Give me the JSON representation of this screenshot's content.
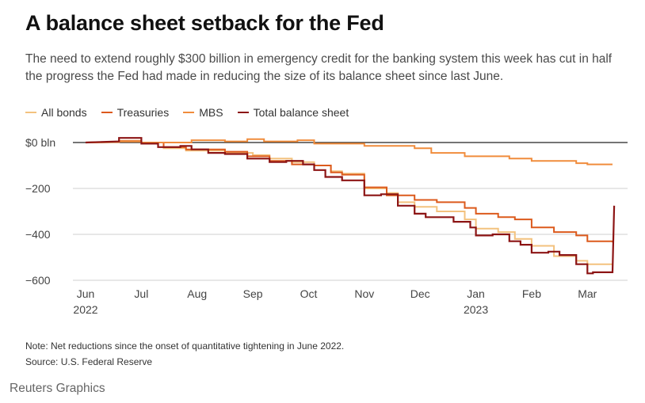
{
  "title": "A balance sheet setback for the Fed",
  "subtitle": "The need to extend roughly $300 billion in emergency credit for the banking system this week has cut in half the progress the Fed had made in reducing the size of its balance sheet since last June.",
  "note": "Note: Net reductions since the onset of quantitative tightening in June 2022.",
  "source": "Source: U.S. Federal Reserve",
  "brand": "Reuters Graphics",
  "colors": {
    "all_bonds": "#f3c27e",
    "treasuries": "#dc5a1c",
    "mbs": "#f08c3c",
    "total": "#8c1414"
  },
  "chart_data": {
    "type": "line",
    "ylim": [
      -600,
      0
    ],
    "yticks": [
      {
        "value": 0,
        "label": "$0 bln"
      },
      {
        "value": -200,
        "label": "−200"
      },
      {
        "value": -400,
        "label": "−400"
      },
      {
        "value": -600,
        "label": "−600"
      }
    ],
    "xticks": [
      {
        "value": 0,
        "label": "Jun",
        "sublabel": "2022"
      },
      {
        "value": 1,
        "label": "Jul",
        "sublabel": ""
      },
      {
        "value": 2,
        "label": "Aug",
        "sublabel": ""
      },
      {
        "value": 3,
        "label": "Sep",
        "sublabel": ""
      },
      {
        "value": 4,
        "label": "Oct",
        "sublabel": ""
      },
      {
        "value": 5,
        "label": "Nov",
        "sublabel": ""
      },
      {
        "value": 6,
        "label": "Dec",
        "sublabel": ""
      },
      {
        "value": 7,
        "label": "Jan",
        "sublabel": "2023"
      },
      {
        "value": 8,
        "label": "Feb",
        "sublabel": ""
      },
      {
        "value": 9,
        "label": "Mar",
        "sublabel": ""
      }
    ],
    "xlim": [
      0,
      9.55
    ],
    "series": [
      {
        "name": "All bonds",
        "color_key": "all_bonds",
        "points": [
          [
            0,
            0
          ],
          [
            0.6,
            2
          ],
          [
            0.6,
            8
          ],
          [
            1.0,
            8
          ],
          [
            1.0,
            0
          ],
          [
            1.4,
            0
          ],
          [
            1.4,
            -25
          ],
          [
            1.8,
            -25
          ],
          [
            1.8,
            -35
          ],
          [
            2.5,
            -35
          ],
          [
            2.5,
            -45
          ],
          [
            3.0,
            -45
          ],
          [
            3.0,
            -55
          ],
          [
            3.3,
            -55
          ],
          [
            3.3,
            -70
          ],
          [
            3.7,
            -70
          ],
          [
            3.7,
            -85
          ],
          [
            4.1,
            -85
          ],
          [
            4.1,
            -100
          ],
          [
            4.4,
            -100
          ],
          [
            4.4,
            -125
          ],
          [
            4.6,
            -125
          ],
          [
            4.6,
            -135
          ],
          [
            5.0,
            -135
          ],
          [
            5.0,
            -200
          ],
          [
            5.4,
            -200
          ],
          [
            5.4,
            -220
          ],
          [
            5.6,
            -220
          ],
          [
            5.6,
            -260
          ],
          [
            5.9,
            -260
          ],
          [
            5.9,
            -280
          ],
          [
            6.3,
            -280
          ],
          [
            6.3,
            -300
          ],
          [
            6.8,
            -300
          ],
          [
            6.8,
            -335
          ],
          [
            7.0,
            -335
          ],
          [
            7.0,
            -375
          ],
          [
            7.4,
            -375
          ],
          [
            7.4,
            -390
          ],
          [
            7.7,
            -390
          ],
          [
            7.7,
            -420
          ],
          [
            8.0,
            -420
          ],
          [
            8.0,
            -450
          ],
          [
            8.4,
            -450
          ],
          [
            8.4,
            -495
          ],
          [
            8.8,
            -495
          ],
          [
            8.8,
            -515
          ],
          [
            9.0,
            -515
          ],
          [
            9.0,
            -530
          ],
          [
            9.45,
            -530
          ]
        ]
      },
      {
        "name": "Treasuries",
        "color_key": "treasuries",
        "points": [
          [
            0,
            0
          ],
          [
            0.6,
            3
          ],
          [
            0.6,
            6
          ],
          [
            1.0,
            6
          ],
          [
            1.0,
            0
          ],
          [
            1.4,
            0
          ],
          [
            1.4,
            -20
          ],
          [
            1.8,
            -20
          ],
          [
            1.8,
            -30
          ],
          [
            2.5,
            -30
          ],
          [
            2.5,
            -40
          ],
          [
            2.9,
            -40
          ],
          [
            2.9,
            -60
          ],
          [
            3.3,
            -60
          ],
          [
            3.3,
            -80
          ],
          [
            3.7,
            -80
          ],
          [
            3.7,
            -95
          ],
          [
            4.1,
            -95
          ],
          [
            4.1,
            -100
          ],
          [
            4.4,
            -100
          ],
          [
            4.4,
            -130
          ],
          [
            4.6,
            -130
          ],
          [
            4.6,
            -140
          ],
          [
            5.0,
            -140
          ],
          [
            5.0,
            -195
          ],
          [
            5.4,
            -195
          ],
          [
            5.4,
            -230
          ],
          [
            5.9,
            -230
          ],
          [
            5.9,
            -250
          ],
          [
            6.3,
            -250
          ],
          [
            6.3,
            -260
          ],
          [
            6.8,
            -260
          ],
          [
            6.8,
            -285
          ],
          [
            7.0,
            -285
          ],
          [
            7.0,
            -310
          ],
          [
            7.4,
            -310
          ],
          [
            7.4,
            -325
          ],
          [
            7.7,
            -325
          ],
          [
            7.7,
            -335
          ],
          [
            8.0,
            -335
          ],
          [
            8.0,
            -370
          ],
          [
            8.4,
            -370
          ],
          [
            8.4,
            -390
          ],
          [
            8.8,
            -390
          ],
          [
            8.8,
            -405
          ],
          [
            9.0,
            -405
          ],
          [
            9.0,
            -430
          ],
          [
            9.45,
            -430
          ],
          [
            9.45,
            -435
          ]
        ]
      },
      {
        "name": "MBS",
        "color_key": "mbs",
        "points": [
          [
            0,
            0
          ],
          [
            0.6,
            2
          ],
          [
            0.6,
            4
          ],
          [
            1.0,
            4
          ],
          [
            1.0,
            0
          ],
          [
            1.9,
            0
          ],
          [
            1.9,
            10
          ],
          [
            2.5,
            10
          ],
          [
            2.5,
            5
          ],
          [
            2.9,
            5
          ],
          [
            2.9,
            15
          ],
          [
            3.2,
            15
          ],
          [
            3.2,
            5
          ],
          [
            3.8,
            5
          ],
          [
            3.8,
            10
          ],
          [
            4.1,
            10
          ],
          [
            4.1,
            -5
          ],
          [
            5.0,
            -5
          ],
          [
            5.0,
            -15
          ],
          [
            5.9,
            -15
          ],
          [
            5.9,
            -25
          ],
          [
            6.2,
            -25
          ],
          [
            6.2,
            -45
          ],
          [
            6.8,
            -45
          ],
          [
            6.8,
            -60
          ],
          [
            7.6,
            -60
          ],
          [
            7.6,
            -70
          ],
          [
            8.0,
            -70
          ],
          [
            8.0,
            -80
          ],
          [
            8.8,
            -80
          ],
          [
            8.8,
            -90
          ],
          [
            9.0,
            -90
          ],
          [
            9.0,
            -95
          ],
          [
            9.45,
            -95
          ]
        ]
      },
      {
        "name": "Total balance sheet",
        "color_key": "total",
        "points": [
          [
            0,
            0
          ],
          [
            0.6,
            5
          ],
          [
            0.6,
            20
          ],
          [
            1.0,
            20
          ],
          [
            1.0,
            -5
          ],
          [
            1.3,
            -5
          ],
          [
            1.3,
            -20
          ],
          [
            1.7,
            -20
          ],
          [
            1.7,
            -15
          ],
          [
            1.9,
            -15
          ],
          [
            1.9,
            -30
          ],
          [
            2.2,
            -30
          ],
          [
            2.2,
            -45
          ],
          [
            2.5,
            -45
          ],
          [
            2.5,
            -50
          ],
          [
            2.9,
            -50
          ],
          [
            2.9,
            -70
          ],
          [
            3.3,
            -70
          ],
          [
            3.3,
            -85
          ],
          [
            3.6,
            -85
          ],
          [
            3.6,
            -80
          ],
          [
            3.9,
            -80
          ],
          [
            3.9,
            -95
          ],
          [
            4.1,
            -95
          ],
          [
            4.1,
            -120
          ],
          [
            4.3,
            -120
          ],
          [
            4.3,
            -150
          ],
          [
            4.6,
            -150
          ],
          [
            4.6,
            -165
          ],
          [
            5.0,
            -165
          ],
          [
            5.0,
            -230
          ],
          [
            5.3,
            -230
          ],
          [
            5.3,
            -225
          ],
          [
            5.6,
            -225
          ],
          [
            5.6,
            -275
          ],
          [
            5.9,
            -275
          ],
          [
            5.9,
            -310
          ],
          [
            6.1,
            -310
          ],
          [
            6.1,
            -325
          ],
          [
            6.6,
            -325
          ],
          [
            6.6,
            -345
          ],
          [
            6.9,
            -345
          ],
          [
            6.9,
            -370
          ],
          [
            7.0,
            -370
          ],
          [
            7.0,
            -405
          ],
          [
            7.3,
            -405
          ],
          [
            7.3,
            -400
          ],
          [
            7.6,
            -400
          ],
          [
            7.6,
            -430
          ],
          [
            7.8,
            -430
          ],
          [
            7.8,
            -445
          ],
          [
            8.0,
            -445
          ],
          [
            8.0,
            -480
          ],
          [
            8.3,
            -480
          ],
          [
            8.3,
            -475
          ],
          [
            8.5,
            -475
          ],
          [
            8.5,
            -490
          ],
          [
            8.8,
            -490
          ],
          [
            8.8,
            -530
          ],
          [
            9.0,
            -530
          ],
          [
            9.0,
            -570
          ],
          [
            9.1,
            -570
          ],
          [
            9.1,
            -565
          ],
          [
            9.45,
            -565
          ],
          [
            9.48,
            -275
          ]
        ]
      }
    ]
  }
}
